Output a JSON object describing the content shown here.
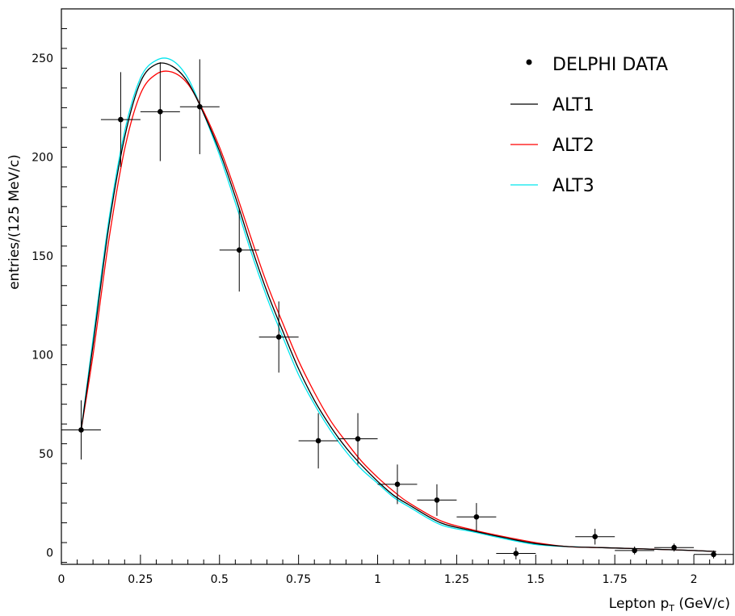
{
  "chart_data": {
    "type": "line",
    "title": "",
    "xlabel": "Lepton p",
    "xlabel_sub": "T",
    "xlabel_unit": " (GeV/c)",
    "ylabel": "entries/(125 MeV/c)",
    "xlim": [
      0,
      2.125
    ],
    "ylim": [
      -6,
      275
    ],
    "x_ticks": [
      0,
      0.25,
      0.5,
      0.75,
      1,
      1.25,
      1.5,
      1.75,
      2
    ],
    "x_tick_labels": [
      "0",
      "0.25",
      "0.5",
      "0.75",
      "1",
      "1.25",
      "1.5",
      "1.75",
      "2"
    ],
    "y_ticks": [
      0,
      50,
      100,
      150,
      200,
      250
    ],
    "y_tick_labels": [
      "0",
      "50",
      "100",
      "150",
      "200",
      "250"
    ],
    "legend_position": "top-right",
    "data_points": {
      "name": "DELPHI DATA",
      "color": "#000000",
      "x": [
        0.0625,
        0.1875,
        0.3125,
        0.4375,
        0.5625,
        0.6875,
        0.8125,
        0.9375,
        1.0625,
        1.1875,
        1.3125,
        1.4375,
        1.6875,
        1.8125,
        1.9375,
        2.0625
      ],
      "y": [
        62,
        219,
        223,
        225.5,
        153,
        109,
        56.5,
        57.5,
        34.5,
        26.5,
        18,
        -0.5,
        8,
        1,
        2.5,
        -1
      ],
      "yerr": [
        15,
        24,
        25,
        24,
        21,
        18,
        14,
        13,
        10,
        8,
        7,
        3,
        4,
        2,
        2,
        2
      ],
      "xerr": 0.0625
    },
    "series": [
      {
        "name": "ALT1",
        "color": "#000000",
        "x": [
          0.0625,
          0.1,
          0.15,
          0.2,
          0.25,
          0.3,
          0.35,
          0.4,
          0.45,
          0.5,
          0.55,
          0.6,
          0.65,
          0.7,
          0.75,
          0.8,
          0.85,
          0.9,
          0.95,
          1.0,
          1.05,
          1.1,
          1.2,
          1.3,
          1.4,
          1.5,
          1.6,
          1.7,
          1.8,
          1.9,
          2.0,
          2.07
        ],
        "y": [
          62,
          105,
          165,
          210,
          238,
          247,
          246,
          238,
          222,
          203,
          180,
          155,
          132,
          112,
          93,
          77,
          64,
          53,
          44,
          36,
          29,
          24,
          15,
          11,
          7.5,
          4.5,
          3,
          2.5,
          2,
          1.5,
          1,
          0.5
        ]
      },
      {
        "name": "ALT2",
        "color": "#ff0000",
        "x": [
          0.0625,
          0.1,
          0.15,
          0.2,
          0.25,
          0.3,
          0.35,
          0.4,
          0.45,
          0.5,
          0.55,
          0.6,
          0.65,
          0.7,
          0.75,
          0.8,
          0.85,
          0.9,
          0.95,
          1.0,
          1.05,
          1.1,
          1.2,
          1.3,
          1.4,
          1.5,
          1.6,
          1.7,
          1.8,
          1.9,
          2.0,
          2.07
        ],
        "y": [
          62,
          100,
          158,
          204,
          232,
          242,
          243,
          237,
          223,
          205,
          183,
          159,
          136,
          116,
          97,
          81,
          67,
          56,
          46,
          38,
          31,
          25,
          16,
          11.5,
          8,
          5,
          3,
          2.5,
          2,
          1.5,
          1,
          0.5
        ]
      },
      {
        "name": "ALT3",
        "color": "#00e5ee",
        "x": [
          0.0625,
          0.1,
          0.15,
          0.2,
          0.25,
          0.3,
          0.35,
          0.4,
          0.45,
          0.5,
          0.55,
          0.6,
          0.65,
          0.7,
          0.75,
          0.8,
          0.85,
          0.9,
          0.95,
          1.0,
          1.05,
          1.1,
          1.2,
          1.3,
          1.4,
          1.5,
          1.6,
          1.7,
          1.8,
          1.9,
          2.0,
          2.07
        ],
        "y": [
          62,
          108,
          168,
          213,
          240,
          249,
          249,
          240,
          222,
          201,
          177,
          152,
          129,
          109,
          90,
          75,
          62,
          51,
          42,
          35,
          28,
          23,
          14,
          10.5,
          7,
          4,
          3,
          2.5,
          2,
          1.5,
          1,
          0.5
        ]
      }
    ]
  }
}
